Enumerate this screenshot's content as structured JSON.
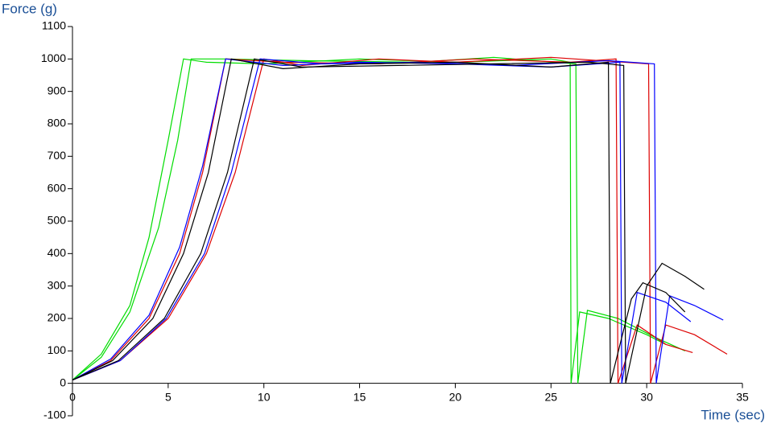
{
  "chart_data": {
    "type": "line",
    "ylabel": "Force (g)",
    "xlabel": "Time (sec)",
    "xlim": [
      0,
      35
    ],
    "xticks": [
      0,
      5,
      10,
      15,
      20,
      25,
      30,
      35
    ],
    "ylim": [
      -100,
      1100
    ],
    "yticks": [
      -100,
      0,
      100,
      200,
      300,
      400,
      500,
      600,
      700,
      800,
      900,
      1000,
      1100
    ],
    "series": [
      {
        "color": "#00dd00",
        "x": [
          0,
          1.5,
          3,
          4,
          5,
          5.8,
          7,
          10,
          15,
          20,
          25,
          26,
          26.05,
          26.5,
          28,
          30,
          31
        ],
        "values": [
          10,
          90,
          240,
          450,
          750,
          1000,
          990,
          985,
          1000,
          990,
          1000,
          990,
          0,
          220,
          200,
          150,
          120
        ]
      },
      {
        "color": "#00dd00",
        "x": [
          0,
          1.5,
          3,
          4.5,
          5.5,
          6.2,
          8,
          12,
          18,
          22,
          26.3,
          26.4,
          26.9,
          28.5,
          30.5,
          32
        ],
        "values": [
          10,
          80,
          220,
          480,
          750,
          1000,
          1000,
          995,
          990,
          1005,
          985,
          0,
          225,
          200,
          140,
          100
        ]
      },
      {
        "color": "#dd0000",
        "x": [
          0,
          2.5,
          5,
          7,
          8.5,
          10,
          12,
          16,
          20,
          25,
          30.1,
          30.2,
          31,
          32.5,
          34.2
        ],
        "values": [
          10,
          70,
          200,
          400,
          650,
          1000,
          980,
          1000,
          990,
          1005,
          985,
          0,
          180,
          150,
          90
        ]
      },
      {
        "color": "#dd0000",
        "x": [
          0,
          2,
          4,
          5.6,
          6.8,
          8,
          11,
          16,
          21,
          26,
          28.4,
          28.5,
          29.5,
          31,
          32.4
        ],
        "values": [
          10,
          70,
          200,
          400,
          650,
          1000,
          990,
          985,
          1000,
          990,
          1000,
          0,
          180,
          120,
          95
        ]
      },
      {
        "color": "#0000ff",
        "x": [
          0,
          2.5,
          4.9,
          6.9,
          8.3,
          9.8,
          13,
          18,
          23,
          28,
          30.4,
          30.5,
          31.2,
          32.5,
          34
        ],
        "values": [
          10,
          70,
          200,
          400,
          650,
          1000,
          985,
          990,
          980,
          995,
          985,
          0,
          270,
          240,
          195
        ]
      },
      {
        "color": "#0000ff",
        "x": [
          0,
          2,
          4,
          5.6,
          6.8,
          8,
          11,
          15,
          20,
          25,
          28.6,
          28.7,
          29.5,
          31,
          32.3
        ],
        "values": [
          10,
          75,
          210,
          420,
          670,
          1000,
          980,
          990,
          985,
          975,
          990,
          0,
          280,
          250,
          190
        ]
      },
      {
        "color": "#000000",
        "x": [
          0,
          2.4,
          4.8,
          6.7,
          8.1,
          9.5,
          12,
          17,
          22,
          27,
          28.8,
          28.9,
          30,
          30.8,
          32,
          33
        ],
        "values": [
          10,
          70,
          200,
          400,
          650,
          1000,
          975,
          980,
          985,
          990,
          980,
          0,
          300,
          370,
          330,
          290
        ]
      },
      {
        "color": "#000000",
        "x": [
          0,
          2.1,
          4.2,
          5.8,
          7.1,
          8.3,
          11,
          15,
          20,
          25,
          28,
          28.1,
          29.2,
          29.8,
          31,
          32
        ],
        "values": [
          10,
          70,
          200,
          400,
          650,
          1000,
          970,
          985,
          990,
          975,
          990,
          0,
          260,
          310,
          280,
          220
        ]
      }
    ]
  }
}
